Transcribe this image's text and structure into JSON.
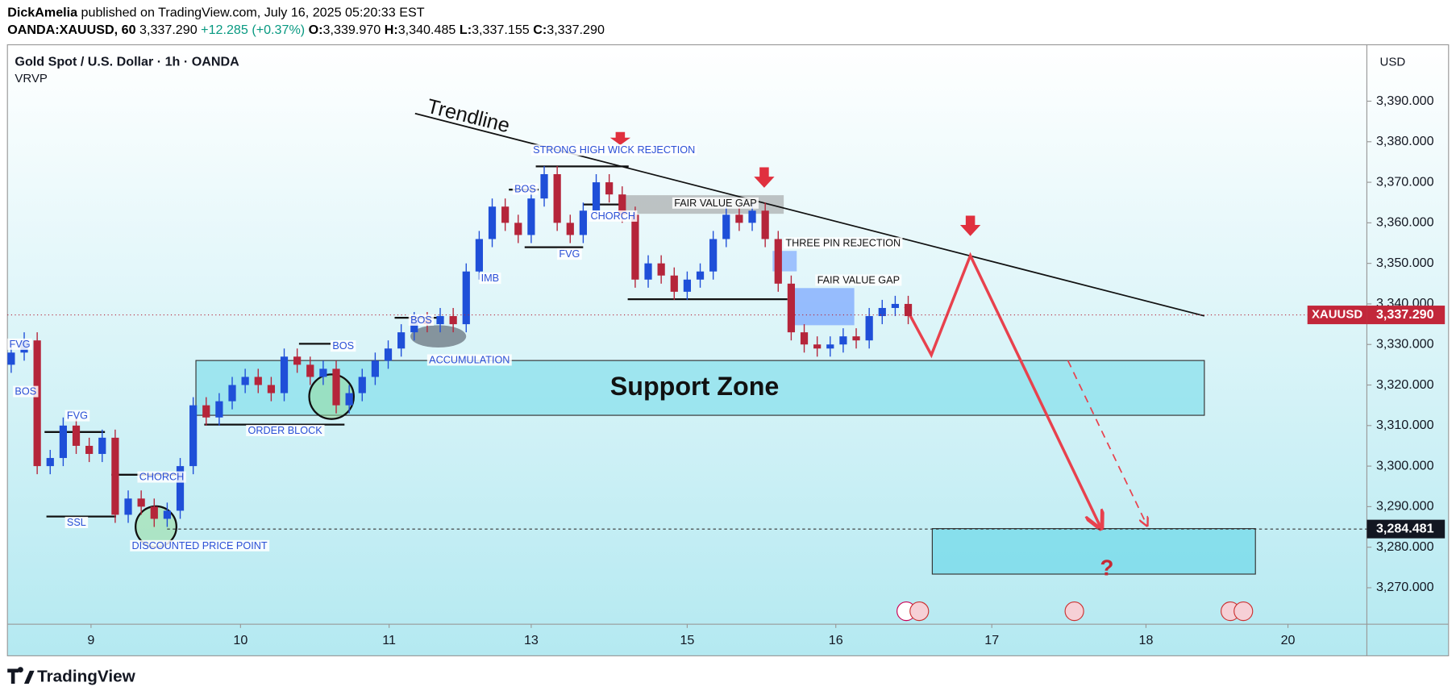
{
  "header": {
    "author": "DickAmelia",
    "published": "published on TradingView.com, July 16, 2025 05:20:33 EST",
    "symbol": "OANDA:XAUUSD, 60",
    "price": "3,337.290",
    "change": "+12.285 (+0.37%)",
    "o_label": "O:",
    "o": "3,339.970",
    "h_label": "H:",
    "h": "3,340.485",
    "l_label": "L:",
    "l": "3,337.155",
    "c_label": "C:",
    "c": "3,337.290"
  },
  "chart_data": {
    "type": "candlestick",
    "title": "Gold Spot / U.S. Dollar · 1h · OANDA",
    "indicator": "VRVP",
    "currency": "USD",
    "symbol_badge": "XAUUSD",
    "up_color": "#1f4fd8",
    "down_color": "#b5253a",
    "grid": false,
    "open": [
      3325,
      3328,
      3331,
      3300,
      3302,
      3310,
      3305,
      3303,
      3307,
      3288,
      3292,
      3290,
      3287,
      3289,
      3300,
      3315,
      3312,
      3316,
      3320,
      3322,
      3320,
      3318,
      3327,
      3325,
      3322,
      3324,
      3315,
      3318,
      3322,
      3326,
      3329,
      3333,
      3336,
      3335,
      3337,
      3335,
      3348,
      3356,
      3364,
      3360,
      3357,
      3366,
      3372,
      3360,
      3357,
      3363,
      3370,
      3367,
      3362,
      3346,
      3350,
      3347,
      3343,
      3346,
      3348,
      3356,
      3362,
      3360,
      3363,
      3356,
      3345,
      3333,
      3330,
      3329,
      3330,
      3332,
      3331,
      3337,
      3339,
      3340
    ],
    "high": [
      3330,
      3333,
      3333,
      3304,
      3312,
      3312,
      3307,
      3309,
      3309,
      3294,
      3294,
      3292,
      3291,
      3302,
      3317,
      3317,
      3318,
      3322,
      3324,
      3324,
      3322,
      3329,
      3329,
      3327,
      3326,
      3326,
      3320,
      3324,
      3328,
      3331,
      3335,
      3338,
      3338,
      3339,
      3339,
      3350,
      3358,
      3366,
      3366,
      3362,
      3368,
      3374,
      3374,
      3362,
      3365,
      3372,
      3372,
      3369,
      3364,
      3352,
      3352,
      3349,
      3348,
      3350,
      3358,
      3364,
      3364,
      3365,
      3365,
      3358,
      3347,
      3335,
      3332,
      3332,
      3334,
      3334,
      3339,
      3341,
      3342,
      3342
    ],
    "low": [
      3323,
      3326,
      3298,
      3298,
      3300,
      3303,
      3301,
      3301,
      3286,
      3286,
      3288,
      3285,
      3285,
      3287,
      3298,
      3310,
      3310,
      3314,
      3318,
      3318,
      3316,
      3316,
      3323,
      3320,
      3320,
      3313,
      3313,
      3316,
      3320,
      3324,
      3327,
      3331,
      3333,
      3333,
      3333,
      3333,
      3346,
      3354,
      3358,
      3355,
      3355,
      3364,
      3358,
      3355,
      3355,
      3361,
      3365,
      3360,
      3344,
      3344,
      3345,
      3341,
      3341,
      3344,
      3346,
      3354,
      3358,
      3358,
      3354,
      3343,
      3331,
      3328,
      3327,
      3327,
      3328,
      3329,
      3329,
      3335,
      3337,
      3335
    ],
    "close": [
      3328,
      3331,
      3300,
      3302,
      3310,
      3305,
      3303,
      3307,
      3288,
      3292,
      3290,
      3287,
      3289,
      3300,
      3315,
      3312,
      3316,
      3320,
      3322,
      3320,
      3318,
      3327,
      3325,
      3322,
      3324,
      3315,
      3318,
      3322,
      3326,
      3329,
      3333,
      3336,
      3335,
      3337,
      3335,
      3348,
      3356,
      3364,
      3360,
      3357,
      3366,
      3372,
      3360,
      3357,
      3363,
      3370,
      3367,
      3362,
      3346,
      3350,
      3347,
      3343,
      3346,
      3348,
      3356,
      3362,
      3360,
      3363,
      3356,
      3345,
      3333,
      3330,
      3329,
      3330,
      3332,
      3331,
      3337,
      3339,
      3340,
      3337
    ],
    "xlim": [
      -0.29,
      104.28
    ],
    "xticks": [
      {
        "value": 6.14,
        "label": "9"
      },
      {
        "value": 17.64,
        "label": "10"
      },
      {
        "value": 29.07,
        "label": "11"
      },
      {
        "value": 40,
        "label": "13"
      },
      {
        "value": 52,
        "label": "15"
      },
      {
        "value": 63.43,
        "label": "16"
      },
      {
        "value": 75.43,
        "label": "17"
      },
      {
        "value": 87.29,
        "label": "18"
      },
      {
        "value": 98.21,
        "label": "20"
      }
    ],
    "ylim": [
      3261,
      3403
    ],
    "yticks": [
      {
        "value": 3270,
        "label": "3,270.000"
      },
      {
        "value": 3280,
        "label": "3,280.000"
      },
      {
        "value": 3290,
        "label": "3,290.000"
      },
      {
        "value": 3300,
        "label": "3,300.000"
      },
      {
        "value": 3310,
        "label": "3,310.000"
      },
      {
        "value": 3320,
        "label": "3,320.000"
      },
      {
        "value": 3330,
        "label": "3,330.000"
      },
      {
        "value": 3340,
        "label": "3,340.000"
      },
      {
        "value": 3350,
        "label": "3,350.000"
      },
      {
        "value": 3360,
        "label": "3,360.000"
      },
      {
        "value": 3370,
        "label": "3,370.000"
      },
      {
        "value": 3380,
        "label": "3,380.000"
      },
      {
        "value": 3390,
        "label": "3,390.000"
      }
    ],
    "last_price": {
      "value": 3337.29,
      "label": "3,337.290"
    },
    "target_price": {
      "value": 3284.481,
      "label": "3,284.481"
    },
    "annotations": [
      "Trendline",
      "STRONG HIGH WICK REJECTION",
      "BOS",
      "CHORCH",
      "FVG",
      "IMB",
      "BOS",
      "ACCUMULATION",
      "BOS",
      "ORDER BLOCK",
      "FVG",
      "BOS",
      "FVG",
      "CHORCH",
      "SSL",
      "DISCOUNTED PRICE POINT",
      "FAIR VALUE GAP",
      "THREE PIN REJECTION",
      "FAIR VALUE GAP",
      "Support Zone",
      "?"
    ]
  },
  "footer": {
    "brand": "TradingView"
  }
}
